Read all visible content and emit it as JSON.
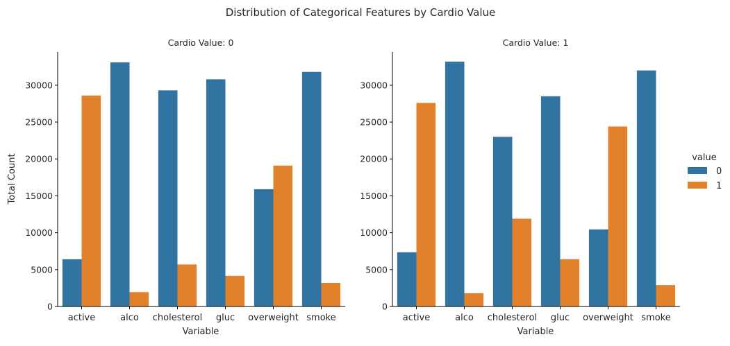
{
  "figure": {
    "suptitle": "Distribution of Categorical Features by Cardio Value"
  },
  "legend": {
    "title": "value",
    "placement": "right",
    "entries": [
      {
        "label": "0",
        "color": "#3274a1"
      },
      {
        "label": "1",
        "color": "#e1812c"
      }
    ]
  },
  "chart_data": [
    {
      "type": "bar",
      "title": "Cardio Value: 0",
      "xlabel": "Variable",
      "ylabel": "Total Count",
      "ylim": [
        0,
        34500
      ],
      "yticks": [
        0,
        5000,
        10000,
        15000,
        20000,
        25000,
        30000
      ],
      "grid": false,
      "categories": [
        "active",
        "alco",
        "cholesterol",
        "gluc",
        "overweight",
        "smoke"
      ],
      "series": [
        {
          "name": "0",
          "color": "#3274a1",
          "values": [
            6400,
            33100,
            29300,
            30800,
            15900,
            31800
          ]
        },
        {
          "name": "1",
          "color": "#e1812c",
          "values": [
            28600,
            1950,
            5700,
            4150,
            19100,
            3200
          ]
        }
      ]
    },
    {
      "type": "bar",
      "title": "Cardio Value: 1",
      "xlabel": "Variable",
      "ylabel": "",
      "ylim": [
        0,
        34500
      ],
      "yticks": [
        0,
        5000,
        10000,
        15000,
        20000,
        25000,
        30000
      ],
      "grid": false,
      "categories": [
        "active",
        "alco",
        "cholesterol",
        "gluc",
        "overweight",
        "smoke"
      ],
      "series": [
        {
          "name": "0",
          "color": "#3274a1",
          "values": [
            7350,
            33200,
            23000,
            28500,
            10450,
            32000
          ]
        },
        {
          "name": "1",
          "color": "#e1812c",
          "values": [
            27600,
            1800,
            11900,
            6400,
            24400,
            2900
          ]
        }
      ]
    }
  ]
}
